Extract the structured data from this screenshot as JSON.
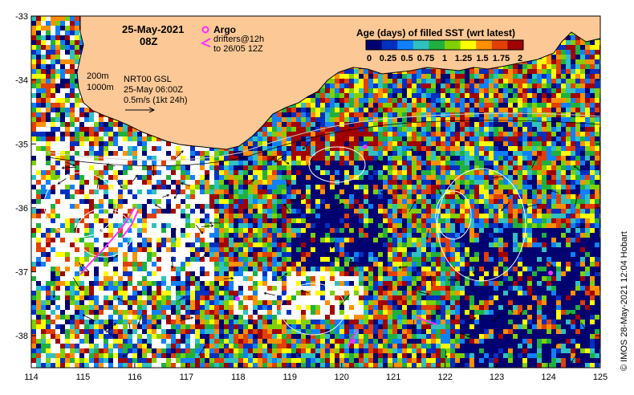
{
  "header": {
    "date": "25-May-2021",
    "time": "08Z"
  },
  "legend": {
    "argo_label": "Argo",
    "drifters_label": "drifters@12h",
    "drifters_sub": "to 26/05 12Z",
    "colorbar_title": "Age (days) of filled SST (wrt latest)",
    "colorbar_ticks": [
      "0",
      "0.25",
      "0.5",
      "0.75",
      "1",
      "1.25",
      "1.5",
      "1.75",
      "2"
    ],
    "colorbar_colors": [
      "#000070",
      "#0030c0",
      "#1080ff",
      "#30c0c0",
      "#20b040",
      "#80d000",
      "#ffff00",
      "#ff9000",
      "#e04000",
      "#a00000"
    ]
  },
  "annotations": {
    "isobath_200": "200m",
    "isobath_1000": "1000m",
    "model": "NRT00 GSL",
    "model_time": "25-May 06:00Z",
    "scale_vector": "0.5m/s (1kt 24h)"
  },
  "credit": "© IMOS 28-May-2021 12:04 Hobart",
  "axes": {
    "x_ticks": [
      "114",
      "115",
      "116",
      "117",
      "118",
      "119",
      "120",
      "121",
      "122",
      "123",
      "124",
      "125"
    ],
    "y_ticks": [
      "-33",
      "-34",
      "-35",
      "-36",
      "-37",
      "-38"
    ],
    "lon_range": [
      114,
      125
    ],
    "lat_range": [
      -38.5,
      -33
    ]
  },
  "colors": {
    "land": "#fcc896",
    "coastline": "#000000",
    "magenta": "#ff30ff"
  }
}
